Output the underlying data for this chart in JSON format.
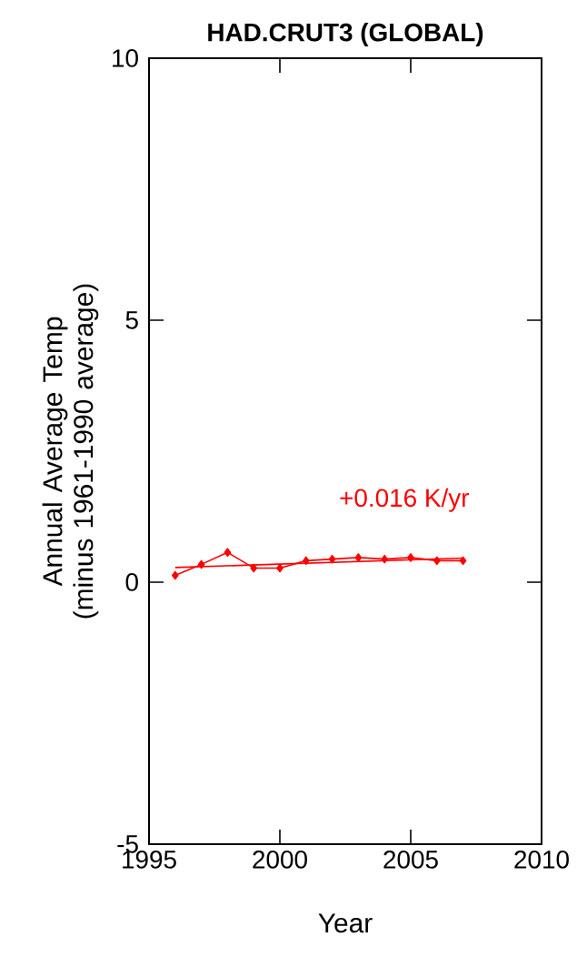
{
  "chart_data": {
    "type": "line",
    "title": "HAD.CRUT3 (GLOBAL)",
    "xlabel": "Year",
    "ylabel": "Annual Average Temp (minus 1961-1990 average)",
    "xlim": [
      1995,
      2010
    ],
    "xticks": [
      1995,
      2000,
      2005,
      2010
    ],
    "ylim": [
      -5,
      10
    ],
    "yticks": [
      -5,
      0,
      5,
      10
    ],
    "marker": "diamond",
    "grid": false,
    "annotations": [
      "+0.016 K/yr"
    ],
    "series": [
      {
        "color": "#ff0000",
        "x": [
          1996,
          1997,
          1998,
          1999,
          2000,
          2001,
          2002,
          2003,
          2004,
          2005,
          2006,
          2007
        ],
        "values": [
          0.13,
          0.34,
          0.57,
          0.27,
          0.27,
          0.41,
          0.44,
          0.47,
          0.44,
          0.47,
          0.41,
          0.41
        ]
      },
      {
        "type": "line",
        "marker": "none",
        "color": "#ff0000",
        "x": [
          1996,
          2007
        ],
        "values": [
          0.28,
          0.46
        ]
      }
    ]
  }
}
